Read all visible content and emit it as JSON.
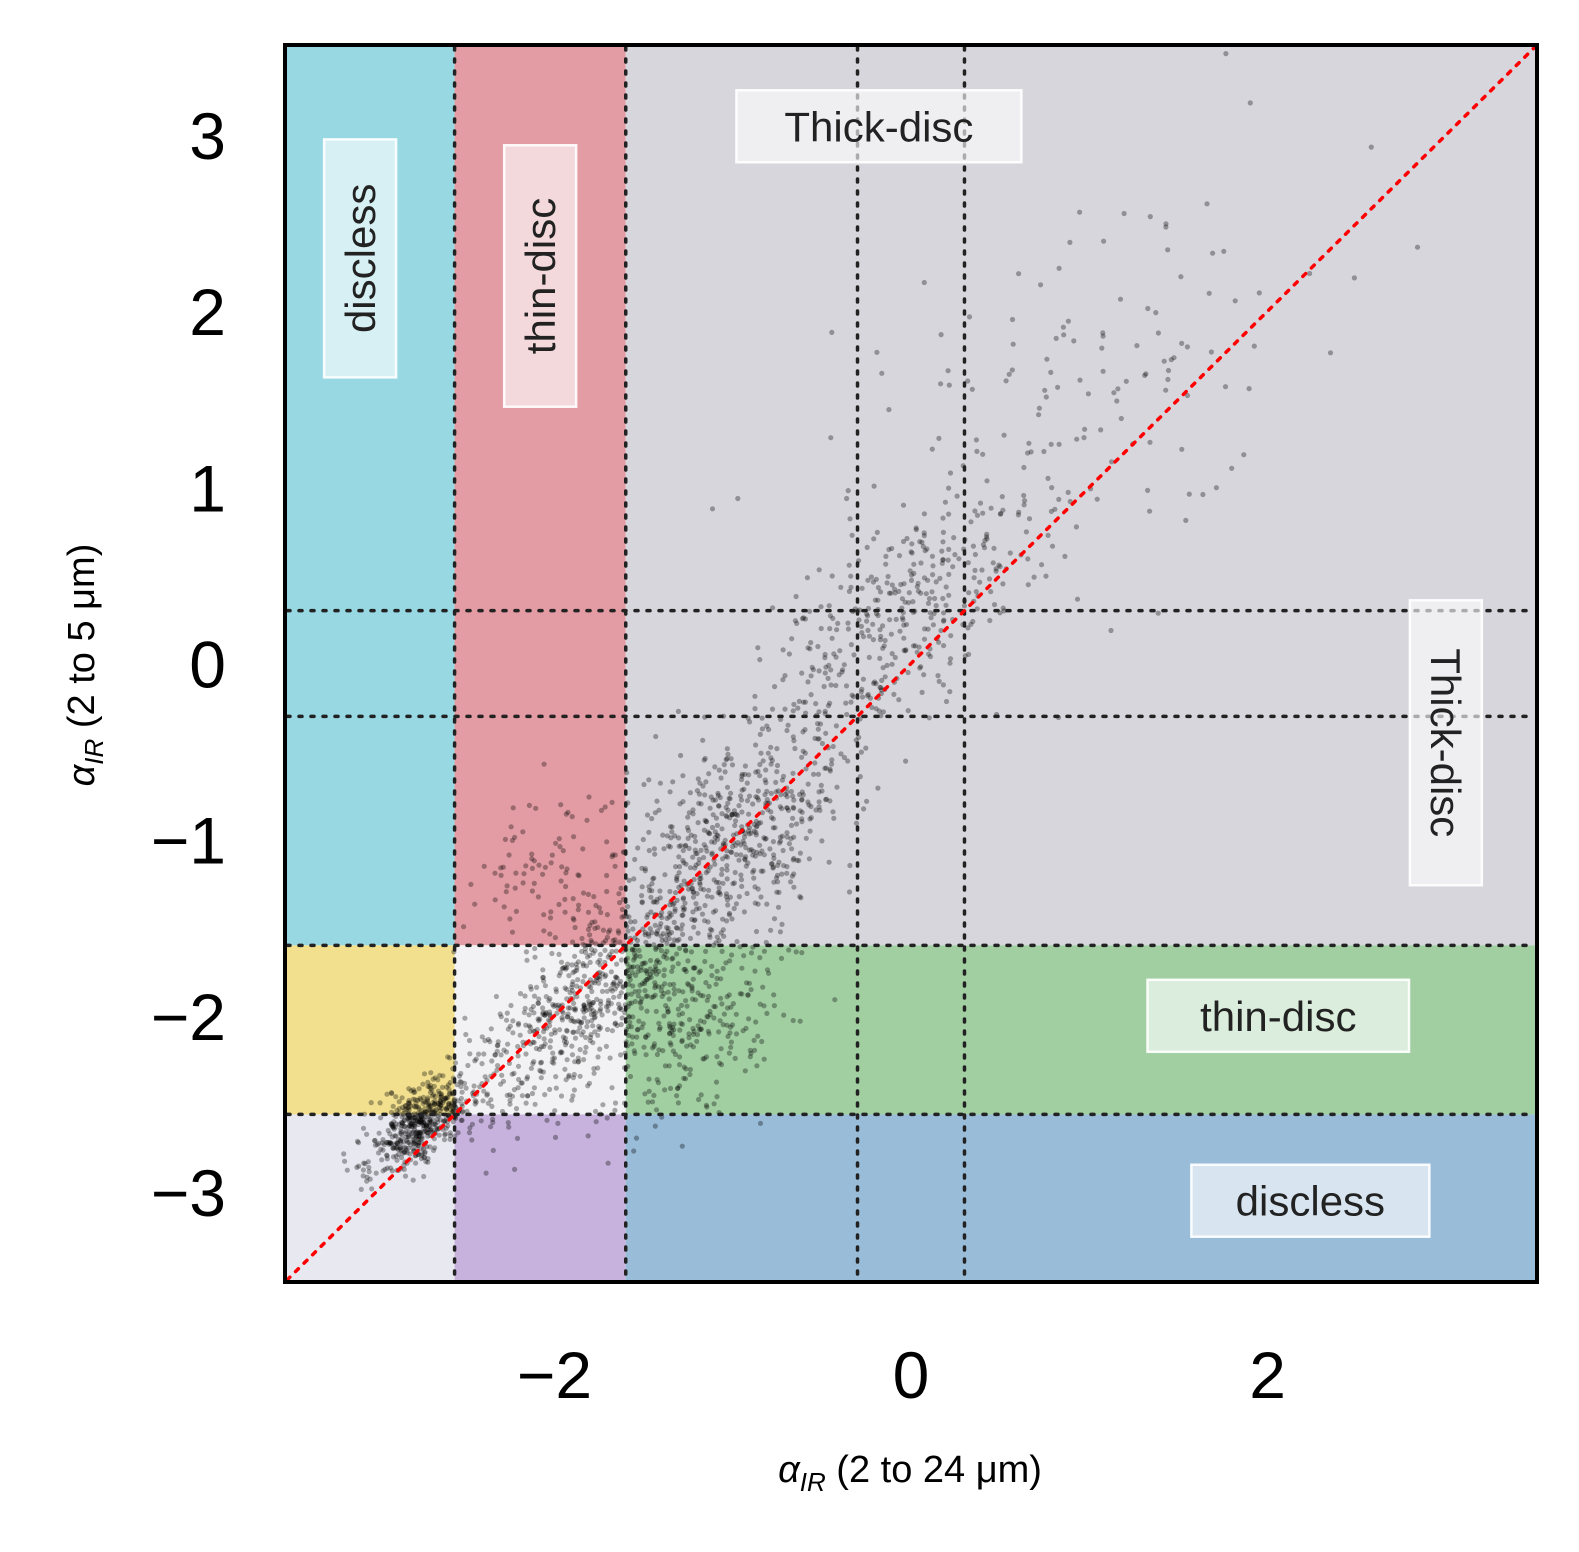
{
  "chart_data": {
    "type": "scatter",
    "title": "",
    "xlabel": "α_IR (2 to 24 μm)",
    "xlabel_symbol": "α",
    "xlabel_subscript": "IR",
    "xlabel_suffix": " (2 to 24 μm)",
    "ylabel": "α_IR (2 to 5 μm)",
    "ylabel_symbol": "α",
    "ylabel_subscript": "IR",
    "ylabel_suffix": " (2 to 5 μm)",
    "xlim": [
      -3.5,
      3.5
    ],
    "ylim": [
      -3.5,
      3.5
    ],
    "xticks": [
      -2,
      0,
      2
    ],
    "yticks": [
      -3,
      -2,
      -1,
      0,
      1,
      2,
      3
    ],
    "xtick_labels": [
      "−2",
      "0",
      "2"
    ],
    "ytick_labels": [
      "−3",
      "−2",
      "−1",
      "0",
      "1",
      "2",
      "3"
    ],
    "grid": false,
    "class_thresholds": {
      "discless_max": -2.56,
      "thin_disc_max": -1.6,
      "flat_spectrum": [
        -0.3,
        0.3
      ]
    },
    "regions": [
      {
        "name": "x-discless",
        "x": [
          -3.5,
          -2.56
        ],
        "y": [
          -1.6,
          3.5
        ],
        "color": "#97d8e3"
      },
      {
        "name": "x-thin-disc",
        "x": [
          -2.56,
          -1.6
        ],
        "y": [
          -1.6,
          3.5
        ],
        "color": "#e39ca4"
      },
      {
        "name": "thick-disc",
        "x": [
          -1.6,
          3.5
        ],
        "y": [
          -1.6,
          3.5
        ],
        "color": "#d6d6dc"
      },
      {
        "name": "discless-discless",
        "x": [
          -3.5,
          -2.56
        ],
        "y": [
          -3.5,
          -2.56
        ],
        "color": "#e8e8f0"
      },
      {
        "name": "thin-x-discless-y",
        "x": [
          -2.56,
          -1.6
        ],
        "y": [
          -3.5,
          -2.56
        ],
        "color": "#c6b2dc"
      },
      {
        "name": "y-discless",
        "x": [
          -1.6,
          3.5
        ],
        "y": [
          -3.5,
          -2.56
        ],
        "color": "#99bcd9"
      },
      {
        "name": "discless-x-thin-y",
        "x": [
          -3.5,
          -2.56
        ],
        "y": [
          -2.56,
          -1.6
        ],
        "color": "#f2e08f"
      },
      {
        "name": "thin-thin",
        "x": [
          -2.56,
          -1.6
        ],
        "y": [
          -2.56,
          -1.6
        ],
        "color": "#f2f2f4"
      },
      {
        "name": "y-thin-disc",
        "x": [
          -1.6,
          3.5
        ],
        "y": [
          -2.56,
          -1.6
        ],
        "color": "#a1cfa2"
      }
    ],
    "annotations": [
      {
        "text": "discless",
        "x": -3.09,
        "y": 2.3,
        "rotation": -90
      },
      {
        "text": "thin-disc",
        "x": -2.08,
        "y": 2.2,
        "rotation": -90
      },
      {
        "text": "Thick-disc",
        "x": -0.18,
        "y": 3.05,
        "rotation": 0
      },
      {
        "text": "Thick-disc",
        "x": 3.0,
        "y": -0.45,
        "rotation": 90
      },
      {
        "text": "thin-disc",
        "x": 2.06,
        "y": -2.0,
        "rotation": 0
      },
      {
        "text": "discless",
        "x": 2.24,
        "y": -3.05,
        "rotation": 0
      }
    ],
    "reference_line": {
      "name": "one-to-one",
      "points": [
        [
          -3.5,
          -3.5
        ],
        [
          3.5,
          3.5
        ]
      ],
      "color": "#ff0000",
      "style": "dotted"
    },
    "series": [
      {
        "name": "sources",
        "color": "#000000",
        "approx_count": 9000,
        "point_clusters": [
          {
            "x_center": -2.75,
            "y_center": -2.6,
            "spread_along_1to1": 0.18,
            "spread_across": 0.09,
            "share": 0.2
          },
          {
            "x_center": -1.8,
            "y_center": -1.9,
            "spread_along_1to1": 0.45,
            "spread_across": 0.17,
            "share": 0.25
          },
          {
            "x_center": -1.0,
            "y_center": -1.0,
            "spread_along_1to1": 0.45,
            "spread_across": 0.22,
            "share": 0.22
          },
          {
            "x_center": -0.1,
            "y_center": 0.2,
            "spread_along_1to1": 0.5,
            "spread_across": 0.25,
            "share": 0.13
          },
          {
            "x_center": -1.2,
            "y_center": -2.05,
            "spread_along_1to1": 0.3,
            "spread_across": 0.2,
            "share": 0.1
          },
          {
            "x_center": -2.1,
            "y_center": -1.2,
            "spread_along_1to1": 0.25,
            "spread_across": 0.15,
            "share": 0.03
          },
          {
            "x_center": 0.8,
            "y_center": 1.4,
            "spread_along_1to1": 0.9,
            "spread_across": 0.5,
            "share": 0.07
          }
        ]
      }
    ]
  }
}
